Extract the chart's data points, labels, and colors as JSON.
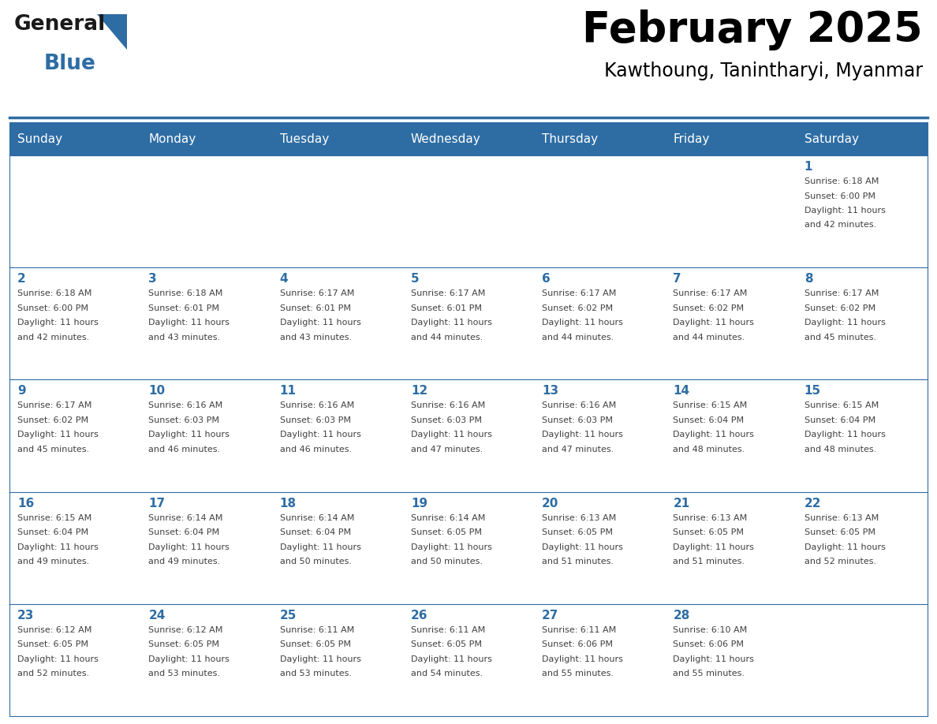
{
  "title": "February 2025",
  "subtitle": "Kawthoung, Tanintharyi, Myanmar",
  "header_bg": "#2E6DA4",
  "header_text_color": "#FFFFFF",
  "cell_bg_white": "#FFFFFF",
  "border_color": "#2E6DA4",
  "text_color": "#404040",
  "day_number_color": "#2E6DA4",
  "day_headers": [
    "Sunday",
    "Monday",
    "Tuesday",
    "Wednesday",
    "Thursday",
    "Friday",
    "Saturday"
  ],
  "logo_color_general": "#1a1a1a",
  "logo_color_blue": "#2E6DA4",
  "days": [
    {
      "day": 1,
      "col": 6,
      "row": 0,
      "sunrise": "6:18 AM",
      "sunset": "6:00 PM",
      "daylight": "11 hours and 42 minutes."
    },
    {
      "day": 2,
      "col": 0,
      "row": 1,
      "sunrise": "6:18 AM",
      "sunset": "6:00 PM",
      "daylight": "11 hours and 42 minutes."
    },
    {
      "day": 3,
      "col": 1,
      "row": 1,
      "sunrise": "6:18 AM",
      "sunset": "6:01 PM",
      "daylight": "11 hours and 43 minutes."
    },
    {
      "day": 4,
      "col": 2,
      "row": 1,
      "sunrise": "6:17 AM",
      "sunset": "6:01 PM",
      "daylight": "11 hours and 43 minutes."
    },
    {
      "day": 5,
      "col": 3,
      "row": 1,
      "sunrise": "6:17 AM",
      "sunset": "6:01 PM",
      "daylight": "11 hours and 44 minutes."
    },
    {
      "day": 6,
      "col": 4,
      "row": 1,
      "sunrise": "6:17 AM",
      "sunset": "6:02 PM",
      "daylight": "11 hours and 44 minutes."
    },
    {
      "day": 7,
      "col": 5,
      "row": 1,
      "sunrise": "6:17 AM",
      "sunset": "6:02 PM",
      "daylight": "11 hours and 44 minutes."
    },
    {
      "day": 8,
      "col": 6,
      "row": 1,
      "sunrise": "6:17 AM",
      "sunset": "6:02 PM",
      "daylight": "11 hours and 45 minutes."
    },
    {
      "day": 9,
      "col": 0,
      "row": 2,
      "sunrise": "6:17 AM",
      "sunset": "6:02 PM",
      "daylight": "11 hours and 45 minutes."
    },
    {
      "day": 10,
      "col": 1,
      "row": 2,
      "sunrise": "6:16 AM",
      "sunset": "6:03 PM",
      "daylight": "11 hours and 46 minutes."
    },
    {
      "day": 11,
      "col": 2,
      "row": 2,
      "sunrise": "6:16 AM",
      "sunset": "6:03 PM",
      "daylight": "11 hours and 46 minutes."
    },
    {
      "day": 12,
      "col": 3,
      "row": 2,
      "sunrise": "6:16 AM",
      "sunset": "6:03 PM",
      "daylight": "11 hours and 47 minutes."
    },
    {
      "day": 13,
      "col": 4,
      "row": 2,
      "sunrise": "6:16 AM",
      "sunset": "6:03 PM",
      "daylight": "11 hours and 47 minutes."
    },
    {
      "day": 14,
      "col": 5,
      "row": 2,
      "sunrise": "6:15 AM",
      "sunset": "6:04 PM",
      "daylight": "11 hours and 48 minutes."
    },
    {
      "day": 15,
      "col": 6,
      "row": 2,
      "sunrise": "6:15 AM",
      "sunset": "6:04 PM",
      "daylight": "11 hours and 48 minutes."
    },
    {
      "day": 16,
      "col": 0,
      "row": 3,
      "sunrise": "6:15 AM",
      "sunset": "6:04 PM",
      "daylight": "11 hours and 49 minutes."
    },
    {
      "day": 17,
      "col": 1,
      "row": 3,
      "sunrise": "6:14 AM",
      "sunset": "6:04 PM",
      "daylight": "11 hours and 49 minutes."
    },
    {
      "day": 18,
      "col": 2,
      "row": 3,
      "sunrise": "6:14 AM",
      "sunset": "6:04 PM",
      "daylight": "11 hours and 50 minutes."
    },
    {
      "day": 19,
      "col": 3,
      "row": 3,
      "sunrise": "6:14 AM",
      "sunset": "6:05 PM",
      "daylight": "11 hours and 50 minutes."
    },
    {
      "day": 20,
      "col": 4,
      "row": 3,
      "sunrise": "6:13 AM",
      "sunset": "6:05 PM",
      "daylight": "11 hours and 51 minutes."
    },
    {
      "day": 21,
      "col": 5,
      "row": 3,
      "sunrise": "6:13 AM",
      "sunset": "6:05 PM",
      "daylight": "11 hours and 51 minutes."
    },
    {
      "day": 22,
      "col": 6,
      "row": 3,
      "sunrise": "6:13 AM",
      "sunset": "6:05 PM",
      "daylight": "11 hours and 52 minutes."
    },
    {
      "day": 23,
      "col": 0,
      "row": 4,
      "sunrise": "6:12 AM",
      "sunset": "6:05 PM",
      "daylight": "11 hours and 52 minutes."
    },
    {
      "day": 24,
      "col": 1,
      "row": 4,
      "sunrise": "6:12 AM",
      "sunset": "6:05 PM",
      "daylight": "11 hours and 53 minutes."
    },
    {
      "day": 25,
      "col": 2,
      "row": 4,
      "sunrise": "6:11 AM",
      "sunset": "6:05 PM",
      "daylight": "11 hours and 53 minutes."
    },
    {
      "day": 26,
      "col": 3,
      "row": 4,
      "sunrise": "6:11 AM",
      "sunset": "6:05 PM",
      "daylight": "11 hours and 54 minutes."
    },
    {
      "day": 27,
      "col": 4,
      "row": 4,
      "sunrise": "6:11 AM",
      "sunset": "6:06 PM",
      "daylight": "11 hours and 55 minutes."
    },
    {
      "day": 28,
      "col": 5,
      "row": 4,
      "sunrise": "6:10 AM",
      "sunset": "6:06 PM",
      "daylight": "11 hours and 55 minutes."
    }
  ]
}
